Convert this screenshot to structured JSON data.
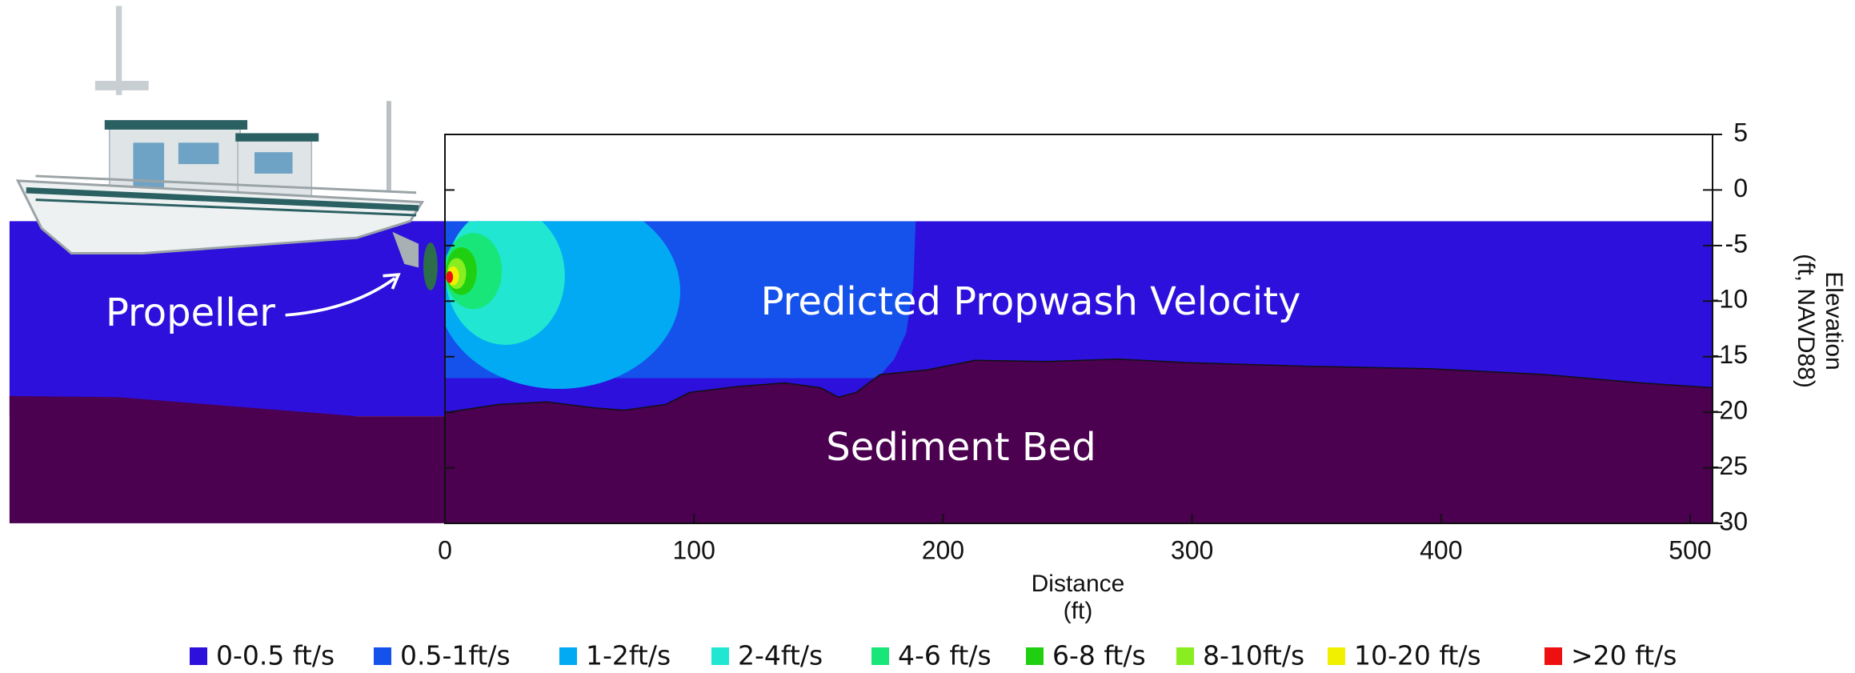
{
  "chart_data": {
    "type": "contour",
    "xlabel": [
      "Distance",
      "(ft)"
    ],
    "ylabel": [
      "Elevation",
      "(ft, NAVD88)"
    ],
    "xlim": [
      0,
      509
    ],
    "ylim": [
      -30,
      5
    ],
    "xticks": [
      0,
      100,
      200,
      300,
      400,
      500
    ],
    "yticks": [
      5,
      0,
      -5,
      -10,
      -15,
      -20,
      -25,
      -30
    ],
    "annotations": [
      "Predicted Propwash Velocity",
      "Sediment Bed",
      "Propeller"
    ],
    "bed_color": "#4b0050",
    "legend": [
      {
        "name": "0-0.5 ft/s",
        "color": "#2d10dc"
      },
      {
        "name": "0.5-1ft/s",
        "color": "#1552ec"
      },
      {
        "name": "1-2ft/s",
        "color": "#02aaf4"
      },
      {
        "name": "2-4ft/s",
        "color": "#20e6d2"
      },
      {
        "name": "4-6 ft/s",
        "color": "#18e678"
      },
      {
        "name": "6-8 ft/s",
        "color": "#20d010"
      },
      {
        "name": "8-10ft/s",
        "color": "#88ee20"
      },
      {
        "name": "10-20 ft/s",
        "color": "#f0f000"
      },
      {
        "name": ">20 ft/s",
        "color": "#ee1010"
      }
    ]
  }
}
